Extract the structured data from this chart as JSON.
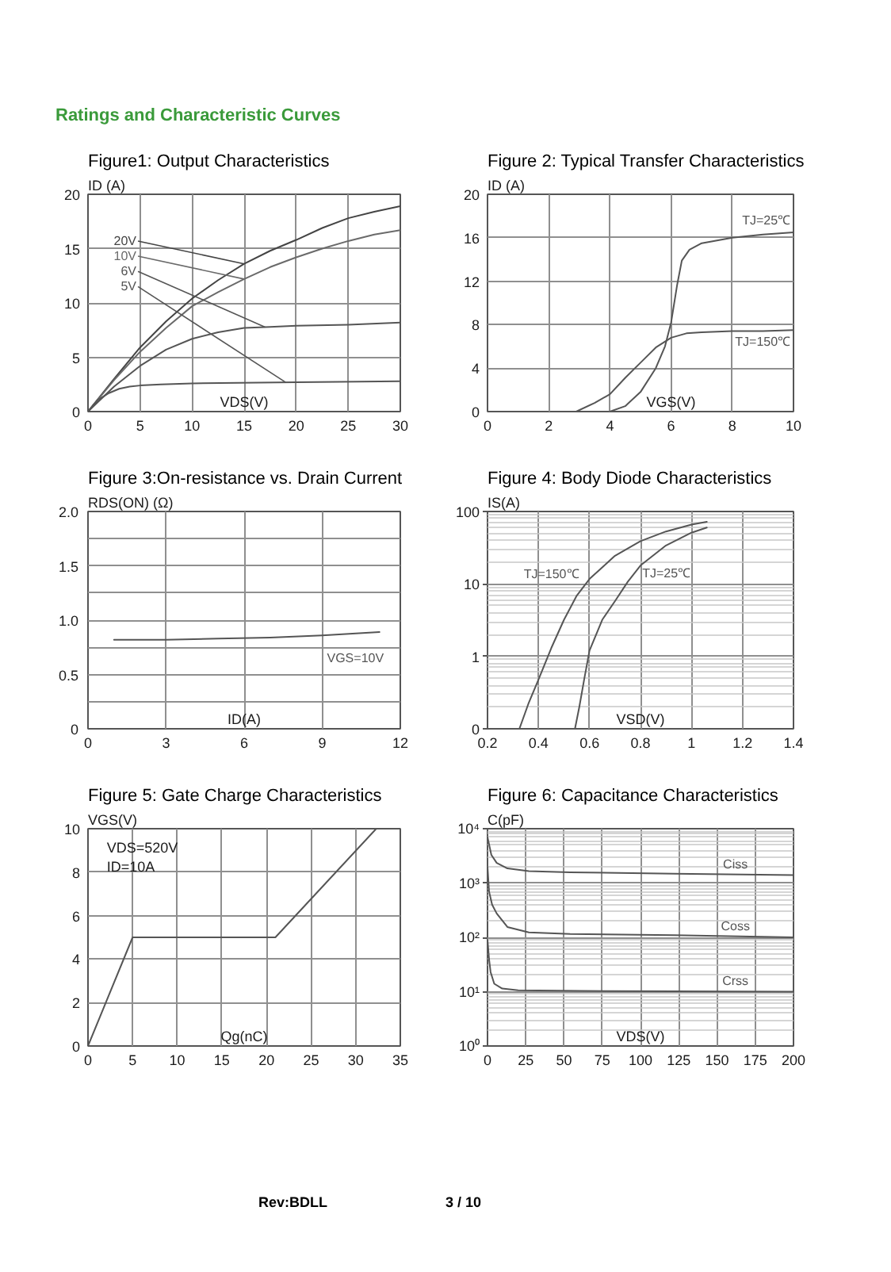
{
  "chart_data": [
    {
      "type": "other",
      "title": "Ratings and Characteristic Curves"
    },
    {
      "type": "line",
      "title": "Figure1: Output Characteristics",
      "xlabel": "VDS(V)",
      "ylabel": "ID (A)",
      "xlim": [
        0,
        30
      ],
      "ylim": [
        0,
        20
      ],
      "xticks": [
        0,
        5,
        10,
        15,
        20,
        25,
        30
      ],
      "yticks": [
        0,
        5,
        10,
        15,
        20
      ],
      "grid": true,
      "series": [
        {
          "name": "20V",
          "color": "#444444",
          "x": [
            0,
            2.5,
            5,
            7.5,
            10,
            12.5,
            15,
            17.5,
            20,
            22.5,
            25,
            27.5,
            30
          ],
          "values": [
            0,
            3.0,
            5.9,
            8.3,
            10.4,
            12.1,
            13.6,
            14.8,
            15.8,
            16.9,
            17.8,
            18.4,
            18.9
          ]
        },
        {
          "name": "10V",
          "color": "#6a6a6a",
          "x": [
            0,
            2.5,
            5,
            7.5,
            10,
            12.5,
            15,
            17.5,
            20,
            22.5,
            25,
            27.5,
            30
          ],
          "values": [
            0,
            2.9,
            5.5,
            7.7,
            9.7,
            11.0,
            12.2,
            13.3,
            14.2,
            15.0,
            15.7,
            16.3,
            16.7
          ]
        },
        {
          "name": "6V",
          "color": "#555555",
          "x": [
            0,
            2.5,
            5,
            7.5,
            10,
            12.5,
            15,
            17.5,
            20,
            25,
            30
          ],
          "values": [
            0,
            2.3,
            4.2,
            5.7,
            6.7,
            7.3,
            7.7,
            7.8,
            7.9,
            8.0,
            8.2
          ]
        },
        {
          "name": "5V",
          "color": "#555555",
          "x": [
            0,
            0.5,
            1,
            1.5,
            2,
            3,
            4,
            5,
            7,
            10,
            20,
            30
          ],
          "values": [
            0,
            0.6,
            1.1,
            1.4,
            1.7,
            2.1,
            2.3,
            2.4,
            2.5,
            2.6,
            2.7,
            2.8
          ]
        }
      ]
    },
    {
      "type": "line",
      "title": "Figure 2: Typical Transfer Characteristics",
      "xlabel": "VGS(V)",
      "ylabel": "ID (A)",
      "xlim": [
        0,
        10
      ],
      "ylim": [
        0,
        20
      ],
      "xticks": [
        0,
        2,
        4,
        6,
        8,
        10
      ],
      "yticks": [
        0,
        4,
        8,
        12,
        16,
        20
      ],
      "grid": true,
      "series": [
        {
          "name": "TJ=25℃",
          "color": "#555555",
          "x": [
            4,
            4.5,
            5,
            5.5,
            5.8,
            6,
            6.2,
            6.35,
            6.6,
            7,
            8,
            9,
            10
          ],
          "values": [
            0,
            0.5,
            1.8,
            4.0,
            6.0,
            8.2,
            11.7,
            13.9,
            14.9,
            15.5,
            16.0,
            16.3,
            16.5
          ]
        },
        {
          "name": "TJ=150℃",
          "color": "#555555",
          "x": [
            2.9,
            3.5,
            4,
            4.5,
            5,
            5.5,
            6,
            6.5,
            7,
            8,
            9,
            10
          ],
          "values": [
            0,
            0.8,
            1.6,
            3.1,
            4.5,
            5.9,
            6.8,
            7.2,
            7.3,
            7.4,
            7.4,
            7.5
          ]
        }
      ]
    },
    {
      "type": "line",
      "title": "Figure 3:On-resistance vs. Drain Current",
      "xlabel": "ID(A)",
      "ylabel": "RDS(ON) (Ω)",
      "xlim": [
        0,
        12
      ],
      "ylim": [
        0,
        2
      ],
      "xticks": [
        0,
        3,
        6,
        9,
        12
      ],
      "yticks": [
        0,
        {
          "value": 0.25,
          "label": null
        },
        0.5,
        {
          "value": 0.75,
          "label": null
        },
        {
          "value": 1,
          "label": "1.0"
        },
        {
          "value": 1.25,
          "label": null
        },
        1.5,
        {
          "value": 1.75,
          "label": null
        },
        {
          "value": 2,
          "label": "2.0"
        }
      ],
      "grid": true,
      "series": [
        {
          "name": "VGS=10V",
          "color": "#555555",
          "x": [
            1,
            3,
            5,
            7,
            9,
            11.2
          ],
          "values": [
            0.82,
            0.82,
            0.83,
            0.84,
            0.86,
            0.89
          ]
        }
      ]
    },
    {
      "type": "line",
      "title": "Figure 4: Body Diode Characteristics",
      "xlabel": "VSD(V)",
      "ylabel": "IS(A)",
      "log": true,
      "xlim": [
        0.2,
        1.4
      ],
      "ylim": [
        0.1,
        100
      ],
      "xticks": [
        0.2,
        0.4,
        0.6,
        0.8,
        1,
        1.2,
        1.4
      ],
      "yticks": [
        {
          "value": 0.1,
          "label": "0"
        },
        1,
        10,
        100
      ],
      "grid": true,
      "series": [
        {
          "name": "TJ=150℃",
          "color": "#555555",
          "x": [
            0.325,
            0.36,
            0.4,
            0.45,
            0.5,
            0.55,
            0.6,
            0.7,
            0.8,
            0.9,
            1.0,
            1.06
          ],
          "values": [
            0.1,
            0.22,
            0.48,
            1.3,
            3.2,
            6.9,
            11.7,
            24.5,
            39,
            53,
            66,
            72
          ]
        },
        {
          "name": "TJ=25℃",
          "color": "#555555",
          "x": [
            0.543,
            0.56,
            0.58,
            0.6,
            0.65,
            0.7,
            0.75,
            0.8,
            0.9,
            1.0,
            1.06
          ],
          "values": [
            0.1,
            0.2,
            0.5,
            1.2,
            3.2,
            5.8,
            10.7,
            18,
            34,
            51,
            60
          ]
        }
      ]
    },
    {
      "type": "line",
      "title": "Figure 5: Gate Charge Characteristics",
      "xlabel": "Qg(nC)",
      "ylabel": "VGS(V)",
      "xlim": [
        0,
        35
      ],
      "ylim": [
        0,
        10
      ],
      "xticks": [
        0,
        5,
        10,
        15,
        20,
        25,
        30,
        35
      ],
      "yticks": [
        0,
        2,
        4,
        6,
        8,
        10
      ],
      "grid": true,
      "annotations": [
        "VDS=520V",
        "ID=10A"
      ],
      "series": [
        {
          "color": "#555555",
          "x": [
            0,
            5,
            21,
            32.3
          ],
          "values": [
            0,
            5,
            5,
            10
          ]
        }
      ]
    },
    {
      "type": "line",
      "title": "Figure 6: Capacitance Characteristics",
      "xlabel": "VDS(V)",
      "ylabel": "C(pF)",
      "log": true,
      "xlim": [
        0,
        200
      ],
      "ylim": [
        1,
        10000
      ],
      "xticks": [
        0,
        25,
        50,
        75,
        100,
        125,
        150,
        175,
        200
      ],
      "yticks": [
        {
          "value": 1,
          "label": "10⁰"
        },
        {
          "value": 10,
          "label": "10¹"
        },
        {
          "value": 100,
          "label": "10²"
        },
        {
          "value": 1000,
          "label": "10³"
        },
        {
          "value": 10000,
          "label": "10⁴"
        }
      ],
      "grid": true,
      "series": [
        {
          "name": "Ciss",
          "color": "#555555",
          "x": [
            0,
            2.5,
            6,
            13,
            27,
            54,
            122,
            200
          ],
          "values": [
            7000,
            3300,
            2350,
            1860,
            1660,
            1580,
            1480,
            1400
          ]
        },
        {
          "name": "Coss",
          "color": "#555555",
          "x": [
            0,
            1,
            3,
            6,
            13,
            27,
            54,
            122,
            200
          ],
          "values": [
            2000,
            700,
            400,
            275,
            155,
            123,
            115,
            110,
            100
          ]
        },
        {
          "name": "Crss",
          "color": "#555555",
          "x": [
            0,
            1,
            2,
            4.4,
            9.6,
            20,
            60,
            122,
            200
          ],
          "values": [
            90,
            40,
            23,
            14,
            11.4,
            10.6,
            10.3,
            10.2,
            10
          ]
        }
      ]
    },
    {
      "type": "other",
      "annotations": [
        "Rev:BDLL",
        "3 / 10"
      ]
    }
  ]
}
